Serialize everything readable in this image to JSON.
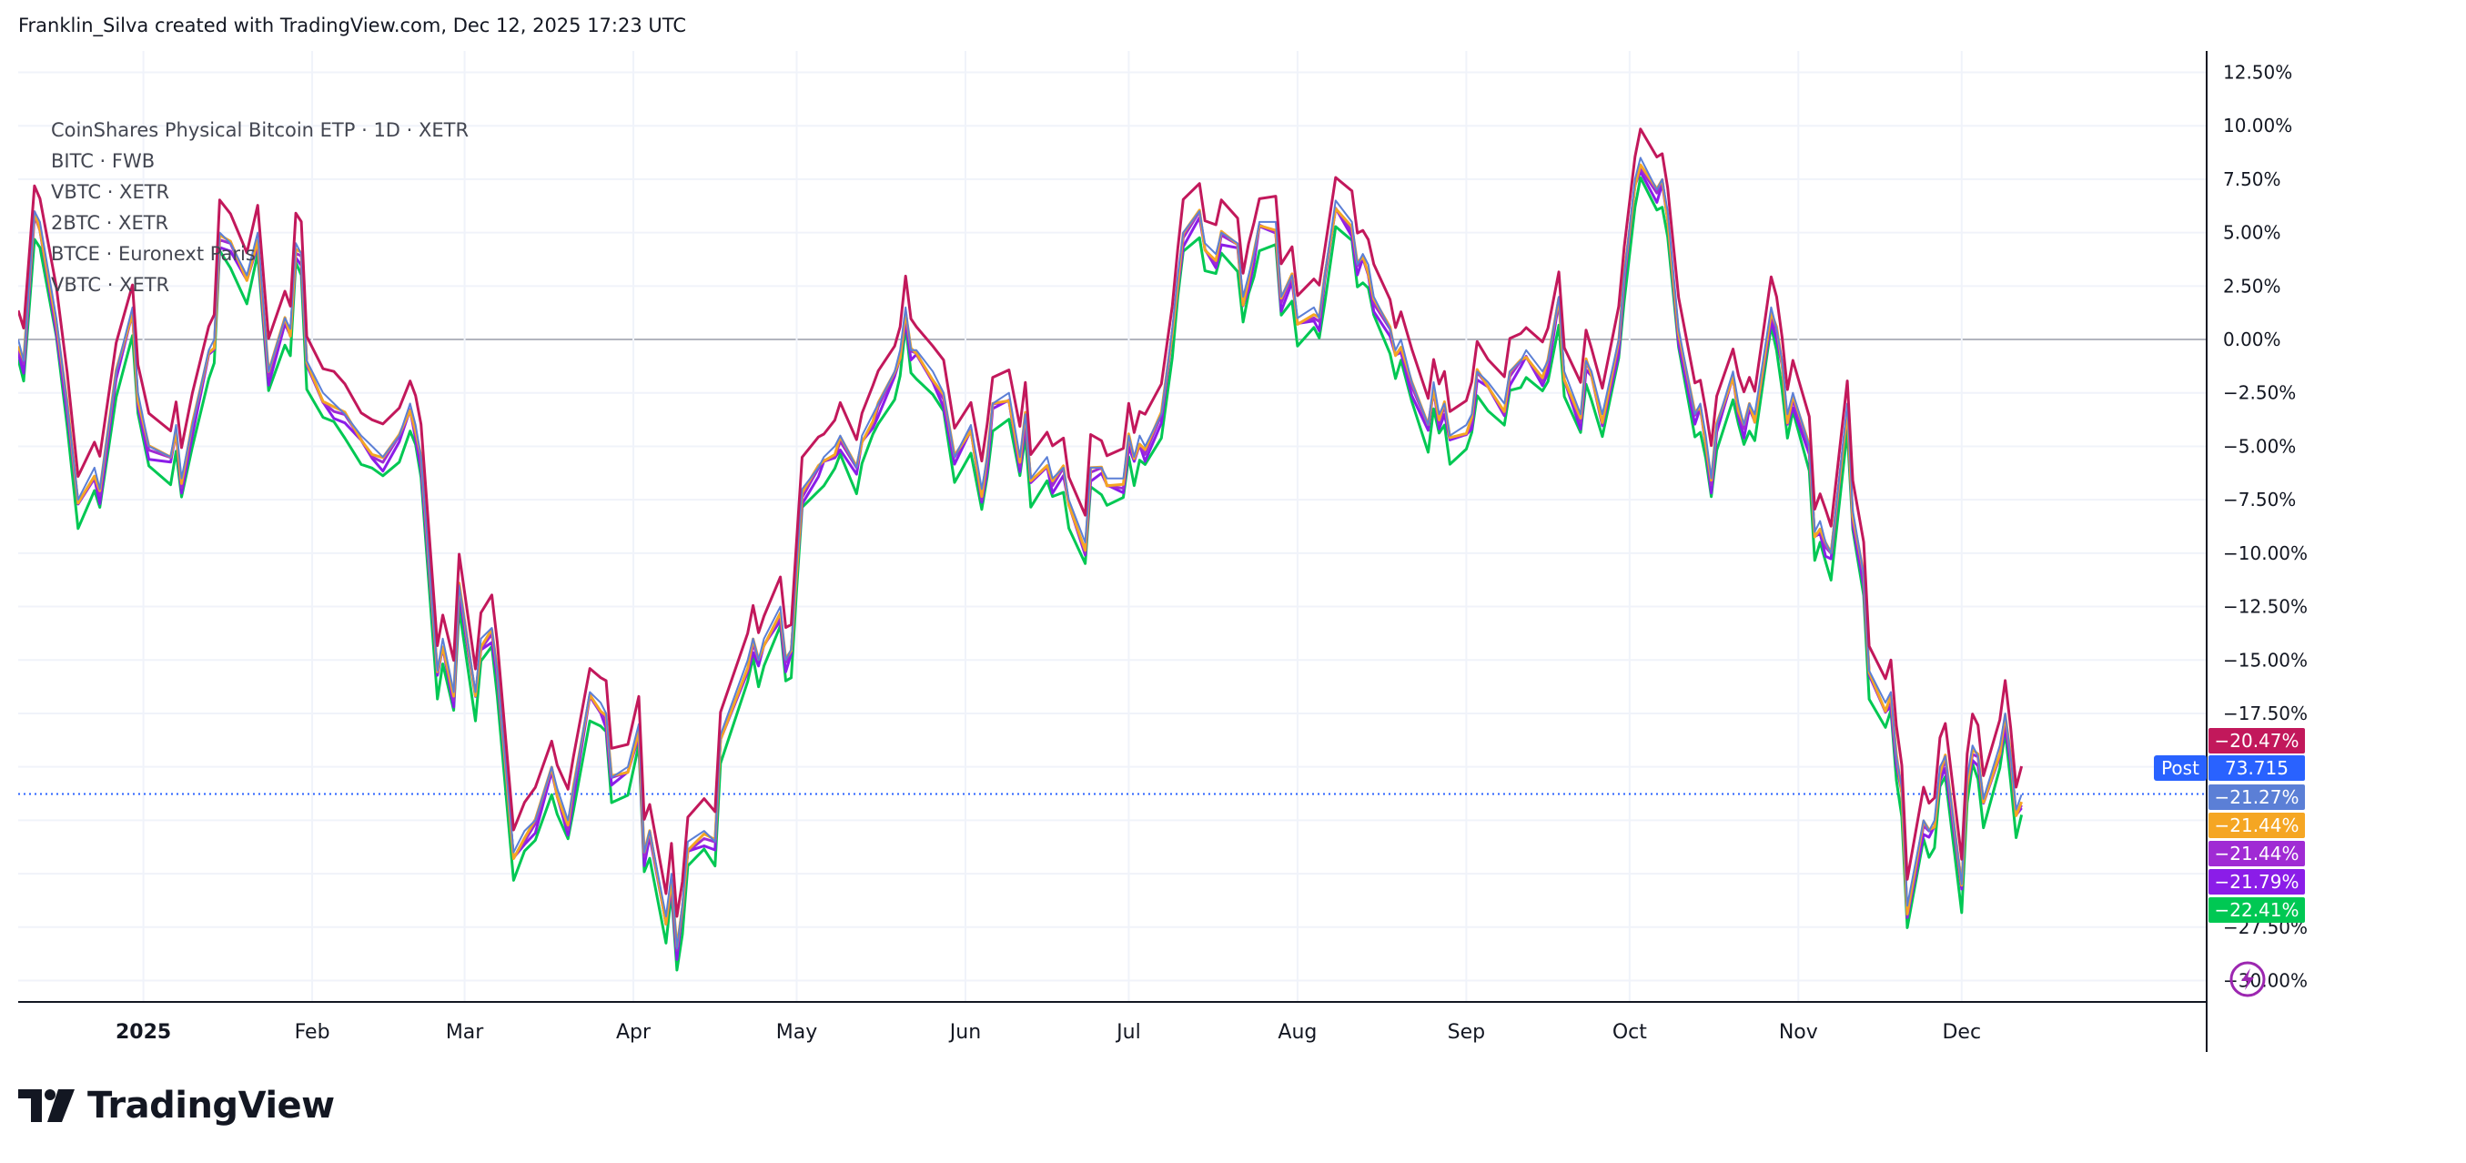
{
  "header": {
    "attribution": "Franklin_Silva created with TradingView.com, Dec 12, 2025 17:23 UTC"
  },
  "legend": {
    "items": [
      "CoinShares Physical Bitcoin ETP · 1D · XETR",
      "BITC · FWB",
      "VBTC · XETR",
      "2BTC · XETR",
      "BTCE · Euronext Paris",
      "VBTC · XETR"
    ]
  },
  "colors": {
    "BTCE": "#c2185b",
    "main": "#5b7fd6",
    "BITC": "#a02bd4",
    "VBTC": "#8b1de8",
    "VBTC2": "#f5a623",
    "2BTC": "#00c853",
    "grid": "#f0f3fa",
    "zero": "#b2b5be",
    "post": "#2962ff"
  },
  "brand": {
    "name": "TradingView"
  },
  "post_badge": {
    "label": "Post",
    "value": "73.715"
  },
  "chart_data": {
    "type": "line",
    "x_axis_labels": [
      "2025",
      "Feb",
      "Mar",
      "Apr",
      "May",
      "Jun",
      "Jul",
      "Aug",
      "Sep",
      "Oct",
      "Nov",
      "Dec"
    ],
    "y_axis_labels": [
      "12.50%",
      "10.00%",
      "7.50%",
      "5.00%",
      "2.50%",
      "0.00%",
      "−2.50%",
      "−5.00%",
      "−7.50%",
      "−10.00%",
      "−12.50%",
      "−15.00%",
      "−17.50%",
      "−27.50%",
      "−30.00%"
    ],
    "ylim": [
      -31,
      13.5
    ],
    "xlim": [
      "2024-12-09",
      "2026-01-15"
    ],
    "last_values": [
      {
        "label": "−20.47%",
        "value": -20.47,
        "color": "#c2185b"
      },
      {
        "label": "−21.27%",
        "value": -21.27,
        "color": "#5b7fd6"
      },
      {
        "label": "−21.44%",
        "value": -21.44,
        "color": "#f5a623"
      },
      {
        "label": "−21.44%",
        "value": -21.44,
        "color": "#a02bd4"
      },
      {
        "label": "−21.79%",
        "value": -21.79,
        "color": "#8b1de8"
      },
      {
        "label": "−22.41%",
        "value": -22.41,
        "color": "#00c853"
      }
    ],
    "base_series": {
      "name": "CoinShares Physical Bitcoin ETP",
      "points": [
        [
          "2024-12-09",
          0.0
        ],
        [
          "2024-12-10",
          -1.0
        ],
        [
          "2024-12-12",
          6.0
        ],
        [
          "2024-12-13",
          5.5
        ],
        [
          "2024-12-16",
          1.0
        ],
        [
          "2024-12-18",
          -3.0
        ],
        [
          "2024-12-20",
          -7.5
        ],
        [
          "2024-12-23",
          -6.0
        ],
        [
          "2024-12-24",
          -7.0
        ],
        [
          "2024-12-27",
          -1.5
        ],
        [
          "2024-12-30",
          1.5
        ],
        [
          "2024-12-31",
          -2.5
        ],
        [
          "2025-01-02",
          -5.0
        ],
        [
          "2025-01-06",
          -5.5
        ],
        [
          "2025-01-07",
          -4.0
        ],
        [
          "2025-01-08",
          -6.5
        ],
        [
          "2025-01-10",
          -4.0
        ],
        [
          "2025-01-13",
          -0.5
        ],
        [
          "2025-01-14",
          0.0
        ],
        [
          "2025-01-15",
          5.0
        ],
        [
          "2025-01-17",
          4.5
        ],
        [
          "2025-01-20",
          3.0
        ],
        [
          "2025-01-22",
          5.0
        ],
        [
          "2025-01-24",
          -1.5
        ],
        [
          "2025-01-27",
          1.0
        ],
        [
          "2025-01-28",
          0.5
        ],
        [
          "2025-01-29",
          4.5
        ],
        [
          "2025-01-30",
          4.0
        ],
        [
          "2025-01-31",
          -1.0
        ],
        [
          "2025-02-03",
          -2.5
        ],
        [
          "2025-02-05",
          -3.0
        ],
        [
          "2025-02-07",
          -3.5
        ],
        [
          "2025-02-10",
          -4.5
        ],
        [
          "2025-02-12",
          -5.0
        ],
        [
          "2025-02-14",
          -5.5
        ],
        [
          "2025-02-17",
          -4.5
        ],
        [
          "2025-02-19",
          -3.0
        ],
        [
          "2025-02-20",
          -4.0
        ],
        [
          "2025-02-21",
          -5.5
        ],
        [
          "2025-02-24",
          -15.5
        ],
        [
          "2025-02-25",
          -14.0
        ],
        [
          "2025-02-27",
          -16.5
        ],
        [
          "2025-02-28",
          -11.5
        ],
        [
          "2025-03-03",
          -16.5
        ],
        [
          "2025-03-04",
          -14.0
        ],
        [
          "2025-03-06",
          -13.5
        ],
        [
          "2025-03-07",
          -15.5
        ],
        [
          "2025-03-10",
          -24.0
        ],
        [
          "2025-03-12",
          -23.0
        ],
        [
          "2025-03-14",
          -22.5
        ],
        [
          "2025-03-17",
          -20.0
        ],
        [
          "2025-03-18",
          -21.0
        ],
        [
          "2025-03-20",
          -22.5
        ],
        [
          "2025-03-21",
          -21.0
        ],
        [
          "2025-03-24",
          -16.5
        ],
        [
          "2025-03-26",
          -17.0
        ],
        [
          "2025-03-27",
          -17.5
        ],
        [
          "2025-03-28",
          -20.5
        ],
        [
          "2025-03-31",
          -20.0
        ],
        [
          "2025-04-02",
          -18.0
        ],
        [
          "2025-04-03",
          -24.0
        ],
        [
          "2025-04-04",
          -23.0
        ],
        [
          "2025-04-07",
          -27.0
        ],
        [
          "2025-04-08",
          -25.0
        ],
        [
          "2025-04-09",
          -28.5
        ],
        [
          "2025-04-10",
          -26.5
        ],
        [
          "2025-04-11",
          -23.5
        ],
        [
          "2025-04-14",
          -23.0
        ],
        [
          "2025-04-16",
          -23.5
        ],
        [
          "2025-04-17",
          -18.5
        ],
        [
          "2025-04-22",
          -15.0
        ],
        [
          "2025-04-23",
          -14.0
        ],
        [
          "2025-04-24",
          -15.0
        ],
        [
          "2025-04-25",
          -14.0
        ],
        [
          "2025-04-28",
          -12.5
        ],
        [
          "2025-04-29",
          -15.0
        ],
        [
          "2025-04-30",
          -14.5
        ],
        [
          "2025-05-01",
          -10.5
        ],
        [
          "2025-05-02",
          -7.0
        ],
        [
          "2025-05-05",
          -6.0
        ],
        [
          "2025-05-06",
          -5.5
        ],
        [
          "2025-05-08",
          -5.0
        ],
        [
          "2025-05-09",
          -4.5
        ],
        [
          "2025-05-12",
          -6.0
        ],
        [
          "2025-05-13",
          -4.5
        ],
        [
          "2025-05-15",
          -3.5
        ],
        [
          "2025-05-16",
          -3.0
        ],
        [
          "2025-05-19",
          -1.5
        ],
        [
          "2025-05-20",
          -0.5
        ],
        [
          "2025-05-21",
          1.5
        ],
        [
          "2025-05-22",
          -0.5
        ],
        [
          "2025-05-23",
          -0.5
        ],
        [
          "2025-05-26",
          -1.5
        ],
        [
          "2025-05-28",
          -2.5
        ],
        [
          "2025-05-30",
          -5.5
        ],
        [
          "2025-06-02",
          -4.0
        ],
        [
          "2025-06-04",
          -7.0
        ],
        [
          "2025-06-05",
          -5.5
        ],
        [
          "2025-06-06",
          -3.0
        ],
        [
          "2025-06-09",
          -2.5
        ],
        [
          "2025-06-11",
          -5.5
        ],
        [
          "2025-06-12",
          -3.5
        ],
        [
          "2025-06-13",
          -6.5
        ],
        [
          "2025-06-16",
          -5.5
        ],
        [
          "2025-06-17",
          -6.5
        ],
        [
          "2025-06-19",
          -6.0
        ],
        [
          "2025-06-20",
          -7.5
        ],
        [
          "2025-06-23",
          -9.5
        ],
        [
          "2025-06-24",
          -6.0
        ],
        [
          "2025-06-26",
          -6.0
        ],
        [
          "2025-06-27",
          -6.5
        ],
        [
          "2025-06-30",
          -6.5
        ],
        [
          "2025-07-01",
          -4.5
        ],
        [
          "2025-07-02",
          -5.5
        ],
        [
          "2025-07-03",
          -4.5
        ],
        [
          "2025-07-04",
          -5.0
        ],
        [
          "2025-07-07",
          -3.5
        ],
        [
          "2025-07-09",
          0.5
        ],
        [
          "2025-07-10",
          3.0
        ],
        [
          "2025-07-11",
          5.0
        ],
        [
          "2025-07-14",
          6.0
        ],
        [
          "2025-07-15",
          4.5
        ],
        [
          "2025-07-17",
          4.0
        ],
        [
          "2025-07-18",
          5.0
        ],
        [
          "2025-07-21",
          4.5
        ],
        [
          "2025-07-22",
          2.0
        ],
        [
          "2025-07-23",
          3.0
        ],
        [
          "2025-07-24",
          4.0
        ],
        [
          "2025-07-25",
          5.5
        ],
        [
          "2025-07-28",
          5.5
        ],
        [
          "2025-07-29",
          2.0
        ],
        [
          "2025-07-31",
          3.0
        ],
        [
          "2025-08-01",
          1.0
        ],
        [
          "2025-08-04",
          1.5
        ],
        [
          "2025-08-05",
          1.0
        ],
        [
          "2025-08-06",
          3.0
        ],
        [
          "2025-08-08",
          6.5
        ],
        [
          "2025-08-11",
          5.5
        ],
        [
          "2025-08-12",
          3.5
        ],
        [
          "2025-08-13",
          4.0
        ],
        [
          "2025-08-14",
          3.5
        ],
        [
          "2025-08-15",
          2.0
        ],
        [
          "2025-08-18",
          0.5
        ],
        [
          "2025-08-19",
          -0.5
        ],
        [
          "2025-08-20",
          0.0
        ],
        [
          "2025-08-22",
          -2.0
        ],
        [
          "2025-08-25",
          -4.0
        ],
        [
          "2025-08-26",
          -2.0
        ],
        [
          "2025-08-27",
          -3.5
        ],
        [
          "2025-08-28",
          -3.0
        ],
        [
          "2025-08-29",
          -4.5
        ],
        [
          "2025-09-01",
          -4.0
        ],
        [
          "2025-09-02",
          -3.5
        ],
        [
          "2025-09-03",
          -1.5
        ],
        [
          "2025-09-05",
          -2.0
        ],
        [
          "2025-09-08",
          -3.0
        ],
        [
          "2025-09-09",
          -1.5
        ],
        [
          "2025-09-11",
          -1.0
        ],
        [
          "2025-09-12",
          -0.5
        ],
        [
          "2025-09-15",
          -1.5
        ],
        [
          "2025-09-16",
          -1.0
        ],
        [
          "2025-09-18",
          2.0
        ],
        [
          "2025-09-19",
          -1.5
        ],
        [
          "2025-09-22",
          -3.5
        ],
        [
          "2025-09-23",
          -1.0
        ],
        [
          "2025-09-24",
          -1.5
        ],
        [
          "2025-09-26",
          -3.5
        ],
        [
          "2025-09-29",
          0.0
        ],
        [
          "2025-09-30",
          3.0
        ],
        [
          "2025-10-02",
          7.5
        ],
        [
          "2025-10-03",
          8.5
        ],
        [
          "2025-10-06",
          7.0
        ],
        [
          "2025-10-07",
          7.5
        ],
        [
          "2025-10-08",
          6.0
        ],
        [
          "2025-10-10",
          0.5
        ],
        [
          "2025-10-13",
          -3.5
        ],
        [
          "2025-10-14",
          -3.0
        ],
        [
          "2025-10-15",
          -4.5
        ],
        [
          "2025-10-16",
          -6.5
        ],
        [
          "2025-10-17",
          -4.0
        ],
        [
          "2025-10-20",
          -1.5
        ],
        [
          "2025-10-21",
          -3.0
        ],
        [
          "2025-10-22",
          -4.0
        ],
        [
          "2025-10-23",
          -3.0
        ],
        [
          "2025-10-24",
          -3.5
        ],
        [
          "2025-10-27",
          1.5
        ],
        [
          "2025-10-28",
          0.5
        ],
        [
          "2025-10-29",
          -1.0
        ],
        [
          "2025-10-30",
          -3.5
        ],
        [
          "2025-10-31",
          -2.5
        ],
        [
          "2025-11-03",
          -5.0
        ],
        [
          "2025-11-04",
          -9.0
        ],
        [
          "2025-11-05",
          -8.5
        ],
        [
          "2025-11-06",
          -9.5
        ],
        [
          "2025-11-07",
          -10.0
        ],
        [
          "2025-11-10",
          -3.0
        ],
        [
          "2025-11-11",
          -8.0
        ],
        [
          "2025-11-13",
          -11.0
        ],
        [
          "2025-11-14",
          -15.5
        ],
        [
          "2025-11-17",
          -17.0
        ],
        [
          "2025-11-18",
          -16.5
        ],
        [
          "2025-11-19",
          -19.5
        ],
        [
          "2025-11-20",
          -21.0
        ],
        [
          "2025-11-21",
          -26.5
        ],
        [
          "2025-11-24",
          -22.5
        ],
        [
          "2025-11-25",
          -23.0
        ],
        [
          "2025-11-26",
          -22.5
        ],
        [
          "2025-11-27",
          -20.0
        ],
        [
          "2025-11-28",
          -19.5
        ],
        [
          "2025-12-01",
          -25.5
        ],
        [
          "2025-12-02",
          -20.5
        ],
        [
          "2025-12-03",
          -19.0
        ],
        [
          "2025-12-04",
          -19.5
        ],
        [
          "2025-12-05",
          -21.5
        ],
        [
          "2025-12-08",
          -19.0
        ],
        [
          "2025-12-09",
          -17.5
        ],
        [
          "2025-12-10",
          -19.5
        ],
        [
          "2025-12-11",
          -22.0
        ],
        [
          "2025-12-12",
          -21.3
        ]
      ]
    },
    "series": [
      {
        "key": "BTCE",
        "offset": 1.3,
        "color": "#c2185b"
      },
      {
        "key": "main",
        "offset": 0.0,
        "color": "#5b7fd6"
      },
      {
        "key": "VBTC2",
        "offset": -0.15,
        "color": "#f5a623"
      },
      {
        "key": "BITC",
        "offset": -0.25,
        "color": "#a02bd4"
      },
      {
        "key": "VBTC",
        "offset": -0.45,
        "color": "#8b1de8"
      },
      {
        "key": "2BTC",
        "offset": -1.1,
        "color": "#00c853"
      }
    ]
  }
}
